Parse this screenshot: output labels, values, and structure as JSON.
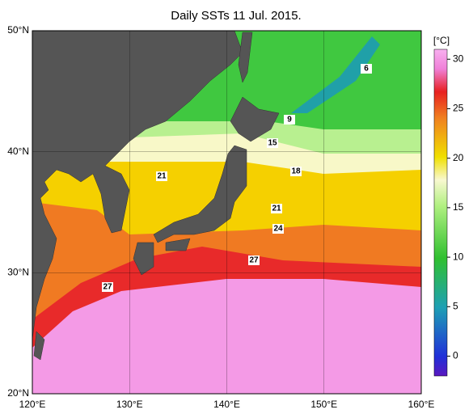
{
  "title": "Daily SSTs 11 Jul. 2015.",
  "map": {
    "lon_range": [
      120,
      160
    ],
    "lat_range": [
      20,
      50
    ],
    "lon_ticks": [
      {
        "value": 120,
        "label": "120°E"
      },
      {
        "value": 130,
        "label": "130°E"
      },
      {
        "value": 140,
        "label": "140°E"
      },
      {
        "value": 150,
        "label": "150°E"
      },
      {
        "value": 160,
        "label": "160°E"
      }
    ],
    "lat_ticks": [
      {
        "value": 20,
        "label": "20°N"
      },
      {
        "value": 30,
        "label": "30°N"
      },
      {
        "value": 40,
        "label": "40°N"
      },
      {
        "value": 50,
        "label": "50°N"
      }
    ],
    "contour_labels": [
      6,
      9,
      15,
      18,
      21,
      21,
      24,
      27,
      27
    ]
  },
  "colorbar": {
    "unit": "[°C]",
    "range": [
      -2,
      31
    ],
    "ticks": [
      0,
      5,
      10,
      15,
      20,
      25,
      30
    ]
  }
}
